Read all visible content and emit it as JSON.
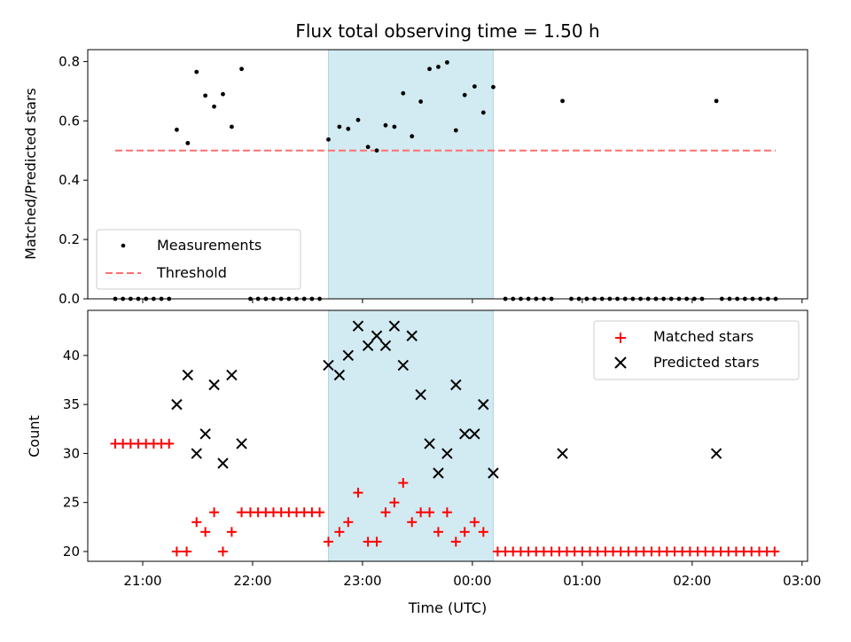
{
  "chart_data": [
    {
      "panel": "top",
      "type": "scatter",
      "title": "Flux total observing time = 1.50 h",
      "xlabel": "",
      "ylabel": "Matched/Predicted stars",
      "x_unit": "hours UTC (continuing past midnight: 24 = 00:00, 25 = 01:00)",
      "xlim": [
        20.5,
        27.05
      ],
      "ylim": [
        0,
        0.84
      ],
      "yticks": [
        0,
        0.2,
        0.4,
        0.6,
        0.8
      ],
      "ytick_labels": [
        "0.0",
        "0.2",
        "0.4",
        "0.6",
        "0.8"
      ],
      "grid": false,
      "legend_position": "lower-left",
      "shaded_interval": {
        "x": [
          22.69,
          24.19
        ],
        "color": "#add8e6"
      },
      "series": [
        {
          "name": "Measurements",
          "kind": "scatter",
          "color": "#000000",
          "points": [
            [
              20.75,
              0
            ],
            [
              20.82,
              0
            ],
            [
              20.89,
              0
            ],
            [
              20.96,
              0
            ],
            [
              21.03,
              0
            ],
            [
              21.1,
              0
            ],
            [
              21.17,
              0
            ],
            [
              21.24,
              0
            ],
            [
              21.31,
              0.57
            ],
            [
              21.41,
              0.525
            ],
            [
              21.49,
              0.765
            ],
            [
              21.57,
              0.685
            ],
            [
              21.65,
              0.648
            ],
            [
              21.73,
              0.69
            ],
            [
              21.81,
              0.58
            ],
            [
              21.9,
              0.775
            ],
            [
              21.98,
              0
            ],
            [
              22.05,
              0
            ],
            [
              22.12,
              0
            ],
            [
              22.19,
              0
            ],
            [
              22.26,
              0
            ],
            [
              22.33,
              0
            ],
            [
              22.4,
              0
            ],
            [
              22.47,
              0
            ],
            [
              22.54,
              0
            ],
            [
              22.61,
              0
            ],
            [
              22.69,
              0.537
            ],
            [
              22.79,
              0.58
            ],
            [
              22.87,
              0.573
            ],
            [
              22.96,
              0.603
            ],
            [
              23.05,
              0.512
            ],
            [
              23.13,
              0.5
            ],
            [
              23.21,
              0.585
            ],
            [
              23.29,
              0.58
            ],
            [
              23.37,
              0.693
            ],
            [
              23.45,
              0.548
            ],
            [
              23.53,
              0.665
            ],
            [
              23.61,
              0.775
            ],
            [
              23.69,
              0.782
            ],
            [
              23.77,
              0.797
            ],
            [
              23.85,
              0.568
            ],
            [
              23.93,
              0.687
            ],
            [
              24.02,
              0.716
            ],
            [
              24.1,
              0.628
            ],
            [
              24.19,
              0.714
            ],
            [
              24.3,
              0
            ],
            [
              24.37,
              0
            ],
            [
              24.44,
              0
            ],
            [
              24.51,
              0
            ],
            [
              24.58,
              0
            ],
            [
              24.65,
              0
            ],
            [
              24.72,
              0
            ],
            [
              24.82,
              0.667
            ],
            [
              24.9,
              0
            ],
            [
              24.97,
              0
            ],
            [
              25.04,
              0
            ],
            [
              25.11,
              0
            ],
            [
              25.18,
              0
            ],
            [
              25.25,
              0
            ],
            [
              25.32,
              0
            ],
            [
              25.39,
              0
            ],
            [
              25.46,
              0
            ],
            [
              25.53,
              0
            ],
            [
              25.6,
              0
            ],
            [
              25.67,
              0
            ],
            [
              25.74,
              0
            ],
            [
              25.81,
              0
            ],
            [
              25.88,
              0
            ],
            [
              25.95,
              0
            ],
            [
              26.02,
              0
            ],
            [
              26.09,
              0
            ],
            [
              26.22,
              0.667
            ],
            [
              26.27,
              0
            ],
            [
              26.34,
              0
            ],
            [
              26.41,
              0
            ],
            [
              26.48,
              0
            ],
            [
              26.55,
              0
            ],
            [
              26.62,
              0
            ],
            [
              26.69,
              0
            ],
            [
              26.76,
              0
            ]
          ]
        },
        {
          "name": "Threshold",
          "kind": "line",
          "style": "dashed",
          "color": "#ff6f6f",
          "x": [
            20.75,
            26.76
          ],
          "y": [
            0.5,
            0.5
          ]
        }
      ]
    },
    {
      "panel": "bottom",
      "type": "scatter",
      "title": "",
      "xlabel": "Time (UTC)",
      "ylabel": "Count",
      "x_unit": "hours UTC (continuing past midnight: 24 = 00:00, 25 = 01:00)",
      "xlim": [
        20.5,
        27.05
      ],
      "ylim": [
        19,
        44.6
      ],
      "yticks": [
        20,
        25,
        30,
        35,
        40
      ],
      "ytick_labels": [
        "20",
        "25",
        "30",
        "35",
        "40"
      ],
      "xticks": [
        21,
        22,
        23,
        24,
        25,
        26,
        27
      ],
      "xtick_labels": [
        "21:00",
        "22:00",
        "23:00",
        "00:00",
        "01:00",
        "02:00",
        "03:00"
      ],
      "grid": false,
      "legend_position": "upper-right",
      "shaded_interval": {
        "x": [
          22.69,
          24.19
        ],
        "color": "#add8e6"
      },
      "series": [
        {
          "name": "Matched stars",
          "marker": "plus",
          "color": "#ff0000",
          "points": [
            [
              20.75,
              31
            ],
            [
              20.82,
              31
            ],
            [
              20.89,
              31
            ],
            [
              20.96,
              31
            ],
            [
              21.03,
              31
            ],
            [
              21.1,
              31
            ],
            [
              21.17,
              31
            ],
            [
              21.24,
              31
            ],
            [
              21.31,
              20
            ],
            [
              21.4,
              20
            ],
            [
              21.49,
              23
            ],
            [
              21.57,
              22
            ],
            [
              21.65,
              24
            ],
            [
              21.73,
              20
            ],
            [
              21.81,
              22
            ],
            [
              21.9,
              24
            ],
            [
              21.98,
              24
            ],
            [
              22.05,
              24
            ],
            [
              22.12,
              24
            ],
            [
              22.19,
              24
            ],
            [
              22.26,
              24
            ],
            [
              22.33,
              24
            ],
            [
              22.4,
              24
            ],
            [
              22.47,
              24
            ],
            [
              22.54,
              24
            ],
            [
              22.61,
              24
            ],
            [
              22.69,
              21
            ],
            [
              22.79,
              22
            ],
            [
              22.87,
              23
            ],
            [
              22.96,
              26
            ],
            [
              23.05,
              21
            ],
            [
              23.13,
              21
            ],
            [
              23.21,
              24
            ],
            [
              23.29,
              25
            ],
            [
              23.37,
              27
            ],
            [
              23.45,
              23
            ],
            [
              23.53,
              24
            ],
            [
              23.61,
              24
            ],
            [
              23.69,
              22
            ],
            [
              23.77,
              24
            ],
            [
              23.85,
              21
            ],
            [
              23.93,
              22
            ],
            [
              24.02,
              23
            ],
            [
              24.1,
              22
            ],
            [
              24.23,
              20
            ],
            [
              24.3,
              20
            ],
            [
              24.37,
              20
            ],
            [
              24.44,
              20
            ],
            [
              24.51,
              20
            ],
            [
              24.58,
              20
            ],
            [
              24.65,
              20
            ],
            [
              24.72,
              20
            ],
            [
              24.79,
              20
            ],
            [
              24.86,
              20
            ],
            [
              24.93,
              20
            ],
            [
              25.0,
              20
            ],
            [
              25.07,
              20
            ],
            [
              25.14,
              20
            ],
            [
              25.21,
              20
            ],
            [
              25.28,
              20
            ],
            [
              25.35,
              20
            ],
            [
              25.42,
              20
            ],
            [
              25.49,
              20
            ],
            [
              25.56,
              20
            ],
            [
              25.63,
              20
            ],
            [
              25.7,
              20
            ],
            [
              25.77,
              20
            ],
            [
              25.84,
              20
            ],
            [
              25.91,
              20
            ],
            [
              25.98,
              20
            ],
            [
              26.05,
              20
            ],
            [
              26.12,
              20
            ],
            [
              26.19,
              20
            ],
            [
              26.26,
              20
            ],
            [
              26.33,
              20
            ],
            [
              26.4,
              20
            ],
            [
              26.47,
              20
            ],
            [
              26.54,
              20
            ],
            [
              26.61,
              20
            ],
            [
              26.68,
              20
            ],
            [
              26.75,
              20
            ]
          ]
        },
        {
          "name": "Predicted stars",
          "marker": "x",
          "color": "#000000",
          "points": [
            [
              21.31,
              35
            ],
            [
              21.41,
              38
            ],
            [
              21.49,
              30
            ],
            [
              21.57,
              32
            ],
            [
              21.65,
              37
            ],
            [
              21.73,
              29
            ],
            [
              21.81,
              38
            ],
            [
              21.9,
              31
            ],
            [
              22.69,
              39
            ],
            [
              22.79,
              38
            ],
            [
              22.87,
              40
            ],
            [
              22.96,
              43
            ],
            [
              23.05,
              41
            ],
            [
              23.13,
              42
            ],
            [
              23.21,
              41
            ],
            [
              23.29,
              43
            ],
            [
              23.37,
              39
            ],
            [
              23.45,
              42
            ],
            [
              23.53,
              36
            ],
            [
              23.61,
              31
            ],
            [
              23.69,
              28
            ],
            [
              23.77,
              30
            ],
            [
              23.85,
              37
            ],
            [
              23.93,
              32
            ],
            [
              24.02,
              32
            ],
            [
              24.1,
              35
            ],
            [
              24.19,
              28
            ],
            [
              24.82,
              30
            ],
            [
              26.22,
              30
            ]
          ]
        }
      ]
    }
  ]
}
